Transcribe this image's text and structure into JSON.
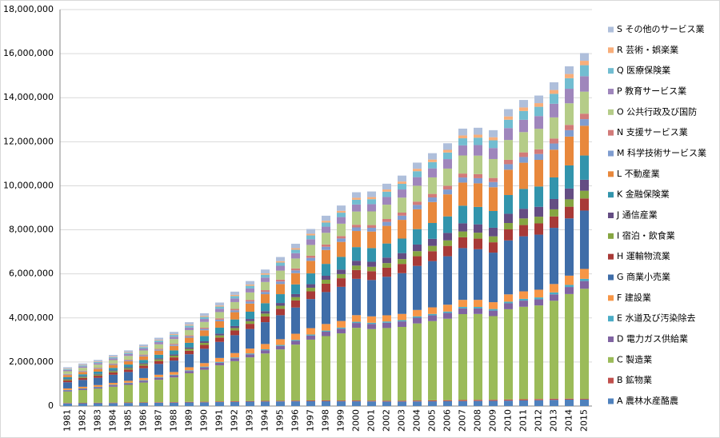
{
  "chart_data": {
    "type": "stacked-bar",
    "categories": [
      "1981",
      "1982",
      "1983",
      "1984",
      "1985",
      "1986",
      "1987",
      "1988",
      "1989",
      "1990",
      "1991",
      "1992",
      "1993",
      "1994",
      "1995",
      "1996",
      "1997",
      "1998",
      "1999",
      "2000",
      "2001",
      "2002",
      "2003",
      "2004",
      "2005",
      "2006",
      "2007",
      "2008",
      "2009",
      "2010",
      "2011",
      "2012",
      "2013",
      "2014",
      "2015"
    ],
    "ylim": [
      0,
      18000000
    ],
    "yticks": [
      {
        "value": 0,
        "label": "0"
      },
      {
        "value": 2000000,
        "label": "2,000,000"
      },
      {
        "value": 4000000,
        "label": "4,000,000"
      },
      {
        "value": 6000000,
        "label": "6,000,000"
      },
      {
        "value": 8000000,
        "label": "8,000,000"
      },
      {
        "value": 10000000,
        "label": "10,000,000"
      },
      {
        "value": 12000000,
        "label": "12,000,000"
      },
      {
        "value": 14000000,
        "label": "14,000,000"
      },
      {
        "value": 16000000,
        "label": "16,000,000"
      },
      {
        "value": 18000000,
        "label": "18,000,000"
      }
    ],
    "grid": true,
    "legend": "right",
    "series": [
      {
        "name": "A 農林水産酪農",
        "color": "#4F81BD",
        "values": [
          120000,
          125000,
          130000,
          135000,
          140000,
          145000,
          150000,
          155000,
          165000,
          170000,
          180000,
          190000,
          200000,
          205000,
          210000,
          215000,
          220000,
          220000,
          215000,
          215000,
          210000,
          205000,
          205000,
          210000,
          215000,
          220000,
          225000,
          230000,
          235000,
          245000,
          255000,
          265000,
          280000,
          290000,
          290000
        ]
      },
      {
        "name": "B 鉱物業",
        "color": "#C0504D",
        "values": [
          20000,
          20000,
          20000,
          22000,
          22000,
          22000,
          23000,
          24000,
          25000,
          26000,
          27000,
          28000,
          28000,
          30000,
          30000,
          32000,
          34000,
          35000,
          35000,
          36000,
          36000,
          37000,
          38000,
          40000,
          42000,
          45000,
          48000,
          50000,
          48000,
          50000,
          52000,
          52000,
          50000,
          45000,
          35000
        ]
      },
      {
        "name": "C 製造業",
        "color": "#9BBB59",
        "values": [
          520000,
          580000,
          640000,
          720000,
          800000,
          900000,
          1020000,
          1120000,
          1300000,
          1450000,
          1640000,
          1820000,
          1980000,
          2150000,
          2330000,
          2540000,
          2760000,
          2920000,
          3050000,
          3300000,
          3250000,
          3300000,
          3350000,
          3500000,
          3600000,
          3700000,
          3900000,
          3900000,
          3800000,
          4100000,
          4200000,
          4250000,
          4450000,
          4750000,
          5000000
        ]
      },
      {
        "name": "D 電力ガス供給業",
        "color": "#8064A2",
        "values": [
          50000,
          55000,
          60000,
          65000,
          70000,
          80000,
          90000,
          95000,
          100000,
          110000,
          120000,
          130000,
          140000,
          150000,
          160000,
          170000,
          185000,
          200000,
          210000,
          220000,
          230000,
          240000,
          250000,
          260000,
          260000,
          260000,
          260000,
          250000,
          250000,
          270000,
          280000,
          280000,
          290000,
          320000,
          350000
        ]
      },
      {
        "name": "E 水道及び汚染除去",
        "color": "#4BACC6",
        "values": [
          20000,
          20000,
          22000,
          24000,
          25000,
          27000,
          28000,
          30000,
          32000,
          34000,
          36000,
          38000,
          40000,
          42000,
          44000,
          46000,
          48000,
          50000,
          52000,
          55000,
          56000,
          58000,
          60000,
          62000,
          64000,
          66000,
          68000,
          70000,
          72000,
          75000,
          80000,
          85000,
          90000,
          95000,
          100000
        ]
      },
      {
        "name": "F 建設業",
        "color": "#F79646",
        "values": [
          70000,
          75000,
          80000,
          85000,
          90000,
          100000,
          110000,
          120000,
          140000,
          160000,
          180000,
          200000,
          220000,
          240000,
          260000,
          280000,
          290000,
          300000,
          300000,
          300000,
          290000,
          280000,
          280000,
          290000,
          300000,
          310000,
          320000,
          320000,
          310000,
          330000,
          340000,
          350000,
          380000,
          420000,
          450000
        ]
      },
      {
        "name": "G 商業小売業",
        "color": "#3F6DA8",
        "values": [
          280000,
          310000,
          330000,
          370000,
          400000,
          440000,
          490000,
          520000,
          590000,
          650000,
          730000,
          810000,
          890000,
          990000,
          1090000,
          1190000,
          1320000,
          1450000,
          1550000,
          1650000,
          1650000,
          1750000,
          1850000,
          2000000,
          2100000,
          2200000,
          2350000,
          2300000,
          2250000,
          2450000,
          2500000,
          2500000,
          2550000,
          2600000,
          2650000
        ]
      },
      {
        "name": "H 運輸物流業",
        "color": "#A83A37",
        "values": [
          80000,
          90000,
          95000,
          105000,
          115000,
          125000,
          135000,
          145000,
          160000,
          175000,
          195000,
          215000,
          235000,
          260000,
          290000,
          320000,
          350000,
          380000,
          390000,
          400000,
          400000,
          410000,
          420000,
          440000,
          450000,
          470000,
          490000,
          480000,
          470000,
          500000,
          510000,
          510000,
          520000,
          530000,
          550000
        ]
      },
      {
        "name": "I 宿泊・飲食業",
        "color": "#86A642",
        "values": [
          40000,
          45000,
          50000,
          55000,
          60000,
          65000,
          72000,
          78000,
          85000,
          92000,
          100000,
          110000,
          120000,
          130000,
          140000,
          150000,
          165000,
          180000,
          190000,
          200000,
          200000,
          210000,
          220000,
          230000,
          240000,
          250000,
          265000,
          270000,
          270000,
          290000,
          300000,
          305000,
          320000,
          335000,
          350000
        ]
      },
      {
        "name": "J 通信産業",
        "color": "#644D83",
        "values": [
          30000,
          32000,
          35000,
          40000,
          42000,
          48000,
          52000,
          58000,
          65000,
          72000,
          80000,
          90000,
          100000,
          112000,
          125000,
          140000,
          160000,
          180000,
          200000,
          220000,
          230000,
          250000,
          270000,
          300000,
          320000,
          340000,
          370000,
          380000,
          390000,
          420000,
          440000,
          450000,
          470000,
          490000,
          500000
        ]
      },
      {
        "name": "K 金融保険業",
        "color": "#3294AC",
        "values": [
          80000,
          90000,
          100000,
          110000,
          120000,
          140000,
          160000,
          180000,
          210000,
          240000,
          270000,
          300000,
          330000,
          360000,
          400000,
          440000,
          490000,
          540000,
          580000,
          620000,
          620000,
          640000,
          660000,
          700000,
          720000,
          750000,
          800000,
          790000,
          760000,
          850000,
          900000,
          920000,
          980000,
          1050000,
          1100000
        ]
      },
      {
        "name": "L 不動産業",
        "color": "#E8883C",
        "values": [
          100000,
          110000,
          120000,
          135000,
          150000,
          165000,
          185000,
          205000,
          230000,
          260000,
          290000,
          330000,
          370000,
          410000,
          460000,
          510000,
          570000,
          630000,
          680000,
          730000,
          750000,
          800000,
          850000,
          900000,
          950000,
          1000000,
          1050000,
          1070000,
          1080000,
          1150000,
          1190000,
          1210000,
          1260000,
          1310000,
          1350000
        ]
      },
      {
        "name": "M 科学技術サービス業",
        "color": "#7F9DD0",
        "values": [
          30000,
          32000,
          35000,
          38000,
          42000,
          46000,
          50000,
          55000,
          60000,
          68000,
          75000,
          85000,
          95000,
          105000,
          115000,
          125000,
          135000,
          145000,
          155000,
          165000,
          170000,
          180000,
          190000,
          200000,
          210000,
          220000,
          230000,
          235000,
          235000,
          250000,
          260000,
          265000,
          280000,
          290000,
          300000
        ]
      },
      {
        "name": "N 支援サービス業",
        "color": "#D27B79",
        "values": [
          20000,
          22000,
          24000,
          27000,
          30000,
          33000,
          37000,
          41000,
          46000,
          52000,
          58000,
          64000,
          70000,
          77000,
          84000,
          91000,
          98000,
          105000,
          112000,
          120000,
          125000,
          132000,
          140000,
          150000,
          160000,
          170000,
          180000,
          185000,
          185000,
          200000,
          210000,
          215000,
          225000,
          240000,
          250000
        ]
      },
      {
        "name": "O 公共行政及び国防",
        "color": "#B5CC88",
        "values": [
          120000,
          130000,
          140000,
          155000,
          170000,
          185000,
          200000,
          215000,
          240000,
          260000,
          285000,
          310000,
          340000,
          370000,
          410000,
          450000,
          490000,
          530000,
          560000,
          600000,
          620000,
          650000,
          680000,
          720000,
          750000,
          780000,
          820000,
          840000,
          860000,
          900000,
          920000,
          930000,
          960000,
          980000,
          1000000
        ]
      },
      {
        "name": "P 教育サービス業",
        "color": "#9F86BC",
        "values": [
          60000,
          65000,
          70000,
          78000,
          85000,
          92000,
          100000,
          110000,
          120000,
          135000,
          150000,
          165000,
          180000,
          200000,
          220000,
          240000,
          260000,
          280000,
          300000,
          320000,
          330000,
          350000,
          370000,
          390000,
          410000,
          430000,
          460000,
          480000,
          500000,
          540000,
          560000,
          580000,
          620000,
          660000,
          700000
        ]
      },
      {
        "name": "Q 医療保険業",
        "color": "#72BDD1",
        "values": [
          40000,
          44000,
          48000,
          53000,
          58000,
          64000,
          70000,
          76000,
          84000,
          92000,
          100000,
          110000,
          120000,
          132000,
          145000,
          158000,
          172000,
          186000,
          200000,
          215000,
          225000,
          240000,
          255000,
          270000,
          285000,
          300000,
          320000,
          335000,
          350000,
          380000,
          400000,
          420000,
          450000,
          480000,
          500000
        ]
      },
      {
        "name": "R 芸術・娯楽業",
        "color": "#F8AE7A",
        "values": [
          20000,
          22000,
          24000,
          26000,
          28000,
          30000,
          33000,
          36000,
          40000,
          44000,
          48000,
          52000,
          56000,
          60000,
          65000,
          70000,
          75000,
          80000,
          85000,
          90000,
          95000,
          100000,
          105000,
          110000,
          115000,
          120000,
          130000,
          135000,
          140000,
          150000,
          160000,
          165000,
          175000,
          190000,
          200000
        ]
      },
      {
        "name": "S その他のサービス業",
        "color": "#AFBFDB",
        "values": [
          60000,
          65000,
          70000,
          75000,
          80000,
          88000,
          96000,
          104000,
          114000,
          124000,
          135000,
          147000,
          160000,
          174000,
          188000,
          202000,
          216000,
          230000,
          240000,
          250000,
          255000,
          262000,
          270000,
          280000,
          290000,
          300000,
          310000,
          315000,
          320000,
          330000,
          340000,
          345000,
          350000,
          350000,
          350000
        ]
      }
    ]
  }
}
